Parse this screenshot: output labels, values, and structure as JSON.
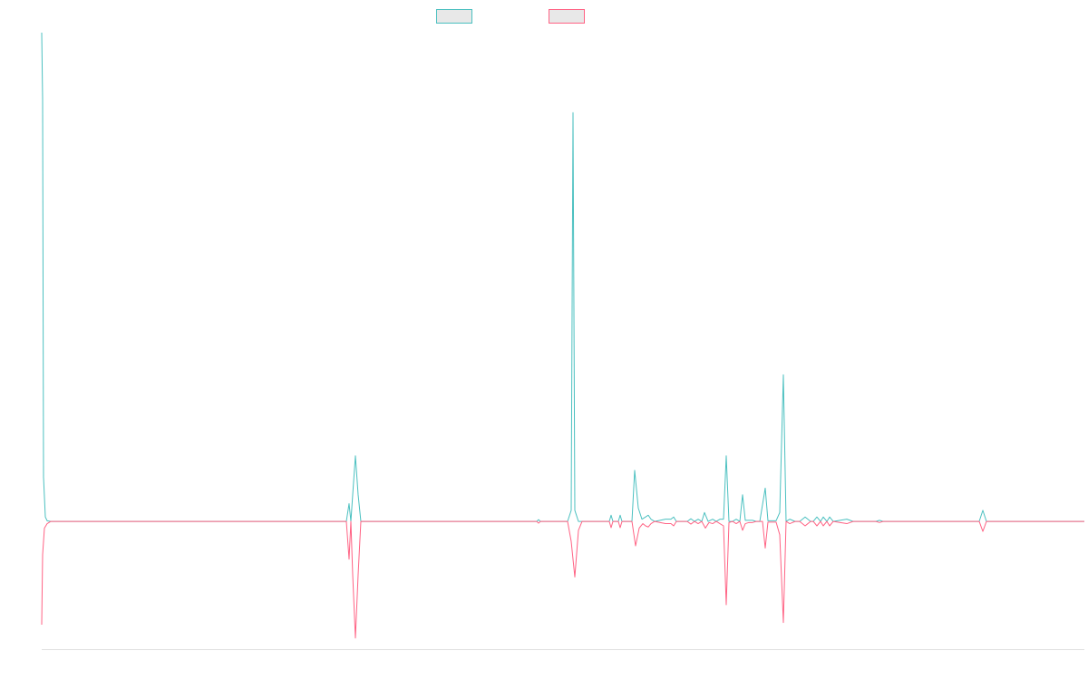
{
  "chart_data": {
    "type": "line",
    "title": "",
    "xlabel": "",
    "ylabel": "",
    "grid": false,
    "legend_position": "top-center",
    "x_range": [
      0,
      1150
    ],
    "ylim": [
      -575,
      2200
    ],
    "zero_value": 0,
    "series": [
      {
        "name": "",
        "color": "#4bc0c0",
        "swatch_fill": "#e8e8e8",
        "points": [
          [
            0,
            2200
          ],
          [
            1,
            1900
          ],
          [
            2,
            200
          ],
          [
            4,
            20
          ],
          [
            6,
            3
          ],
          [
            10,
            0
          ],
          [
            336,
            0
          ],
          [
            339,
            80
          ],
          [
            341,
            0
          ],
          [
            343,
            120
          ],
          [
            346,
            295
          ],
          [
            349,
            120
          ],
          [
            352,
            0
          ],
          [
            546,
            0
          ],
          [
            548,
            8
          ],
          [
            550,
            0
          ],
          [
            580,
            0
          ],
          [
            584,
            50
          ],
          [
            586,
            1840
          ],
          [
            588,
            50
          ],
          [
            592,
            0
          ],
          [
            604,
            0
          ],
          [
            626,
            0
          ],
          [
            628,
            28
          ],
          [
            630,
            0
          ],
          [
            636,
            0
          ],
          [
            638,
            28
          ],
          [
            640,
            0
          ],
          [
            651,
            0
          ],
          [
            654,
            230
          ],
          [
            658,
            60
          ],
          [
            662,
            10
          ],
          [
            666,
            20
          ],
          [
            669,
            28
          ],
          [
            672,
            10
          ],
          [
            676,
            0
          ],
          [
            688,
            10
          ],
          [
            694,
            10
          ],
          [
            697,
            20
          ],
          [
            700,
            0
          ],
          [
            707,
            0
          ],
          [
            712,
            0
          ],
          [
            716,
            12
          ],
          [
            720,
            0
          ],
          [
            724,
            10
          ],
          [
            728,
            0
          ],
          [
            731,
            40
          ],
          [
            735,
            0
          ],
          [
            740,
            10
          ],
          [
            744,
            0
          ],
          [
            748,
            10
          ],
          [
            752,
            10
          ],
          [
            755,
            295
          ],
          [
            758,
            0
          ],
          [
            762,
            0
          ],
          [
            766,
            10
          ],
          [
            770,
            0
          ],
          [
            773,
            120
          ],
          [
            776,
            5
          ],
          [
            780,
            5
          ],
          [
            784,
            5
          ],
          [
            788,
            0
          ],
          [
            792,
            0
          ],
          [
            798,
            150
          ],
          [
            801,
            3
          ],
          [
            806,
            3
          ],
          [
            810,
            3
          ],
          [
            814,
            40
          ],
          [
            818,
            660
          ],
          [
            821,
            0
          ],
          [
            825,
            10
          ],
          [
            831,
            0
          ],
          [
            836,
            0
          ],
          [
            842,
            20
          ],
          [
            848,
            0
          ],
          [
            851,
            0
          ],
          [
            855,
            20
          ],
          [
            859,
            0
          ],
          [
            862,
            20
          ],
          [
            866,
            0
          ],
          [
            869,
            20
          ],
          [
            873,
            0
          ],
          [
            888,
            10
          ],
          [
            895,
            0
          ],
          [
            920,
            0
          ],
          [
            924,
            5
          ],
          [
            928,
            0
          ],
          [
            1034,
            0
          ],
          [
            1038,
            50
          ],
          [
            1042,
            0
          ],
          [
            1150,
            0
          ]
        ]
      },
      {
        "name": "",
        "color": "#ff6384",
        "swatch_fill": "#e8e8e8",
        "points": [
          [
            0,
            -465
          ],
          [
            1,
            -150
          ],
          [
            3,
            -30
          ],
          [
            6,
            -10
          ],
          [
            10,
            0
          ],
          [
            336,
            0
          ],
          [
            339,
            -170
          ],
          [
            341,
            0
          ],
          [
            343,
            -240
          ],
          [
            346,
            -525
          ],
          [
            349,
            -240
          ],
          [
            352,
            0
          ],
          [
            546,
            0
          ],
          [
            548,
            -8
          ],
          [
            550,
            0
          ],
          [
            580,
            0
          ],
          [
            584,
            -90
          ],
          [
            588,
            -250
          ],
          [
            592,
            -40
          ],
          [
            596,
            0
          ],
          [
            604,
            0
          ],
          [
            626,
            0
          ],
          [
            628,
            -28
          ],
          [
            630,
            0
          ],
          [
            636,
            0
          ],
          [
            638,
            -28
          ],
          [
            640,
            0
          ],
          [
            651,
            0
          ],
          [
            655,
            -110
          ],
          [
            659,
            -30
          ],
          [
            663,
            -10
          ],
          [
            666,
            -20
          ],
          [
            669,
            -25
          ],
          [
            672,
            -10
          ],
          [
            676,
            0
          ],
          [
            688,
            -10
          ],
          [
            694,
            -10
          ],
          [
            697,
            -20
          ],
          [
            700,
            0
          ],
          [
            707,
            0
          ],
          [
            712,
            0
          ],
          [
            716,
            -12
          ],
          [
            720,
            0
          ],
          [
            724,
            -10
          ],
          [
            728,
            0
          ],
          [
            732,
            -30
          ],
          [
            736,
            -5
          ],
          [
            740,
            -10
          ],
          [
            744,
            0
          ],
          [
            748,
            -10
          ],
          [
            752,
            -20
          ],
          [
            755,
            -375
          ],
          [
            758,
            -5
          ],
          [
            762,
            0
          ],
          [
            766,
            -10
          ],
          [
            770,
            0
          ],
          [
            773,
            -40
          ],
          [
            776,
            -10
          ],
          [
            780,
            -5
          ],
          [
            784,
            -5
          ],
          [
            788,
            0
          ],
          [
            795,
            0
          ],
          [
            798,
            -120
          ],
          [
            801,
            -3
          ],
          [
            806,
            -3
          ],
          [
            810,
            -3
          ],
          [
            814,
            -60
          ],
          [
            818,
            -455
          ],
          [
            821,
            0
          ],
          [
            825,
            -10
          ],
          [
            831,
            0
          ],
          [
            836,
            0
          ],
          [
            842,
            -20
          ],
          [
            848,
            0
          ],
          [
            851,
            0
          ],
          [
            855,
            -20
          ],
          [
            859,
            0
          ],
          [
            862,
            -20
          ],
          [
            866,
            0
          ],
          [
            869,
            -20
          ],
          [
            873,
            0
          ],
          [
            888,
            -10
          ],
          [
            895,
            0
          ],
          [
            920,
            0
          ],
          [
            924,
            -5
          ],
          [
            928,
            0
          ],
          [
            1034,
            0
          ],
          [
            1038,
            -45
          ],
          [
            1042,
            0
          ],
          [
            1150,
            0
          ]
        ]
      }
    ]
  }
}
